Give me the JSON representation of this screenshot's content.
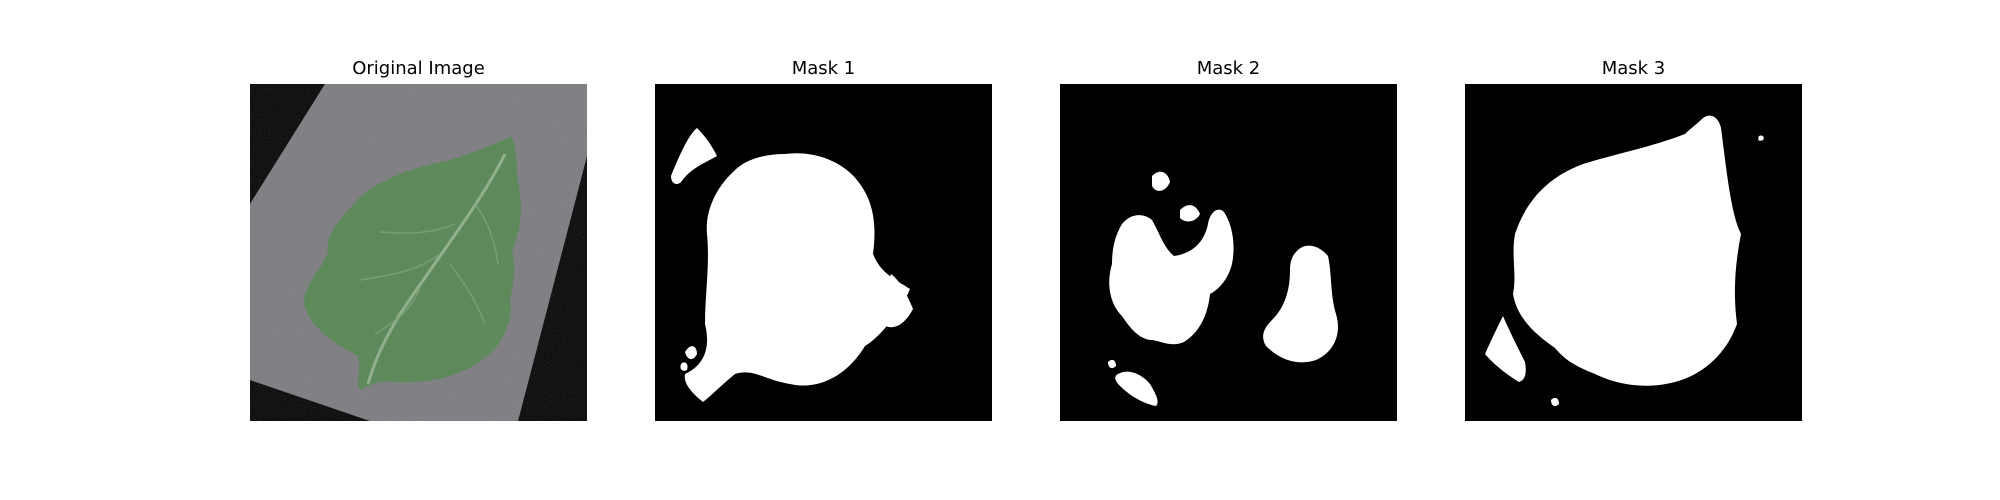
{
  "figure": {
    "panels": [
      {
        "title": "Original Image",
        "kind": "photo"
      },
      {
        "title": "Mask 1",
        "kind": "mask"
      },
      {
        "title": "Mask 2",
        "kind": "mask"
      },
      {
        "title": "Mask 3",
        "kind": "mask"
      }
    ]
  },
  "colors": {
    "background": "#ffffff",
    "mask_background": "#000000",
    "mask_foreground": "#ffffff",
    "leaf": "#5f8a5c",
    "leaf_dark": "#4a6f47",
    "fabric": "#7a7a7e"
  }
}
